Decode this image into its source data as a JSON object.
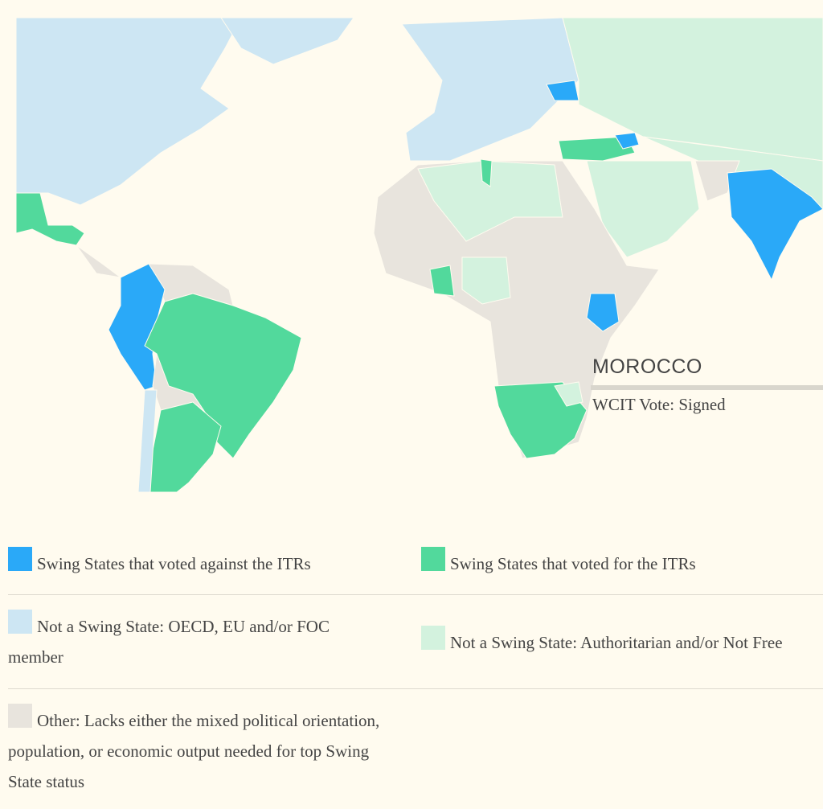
{
  "tooltip": {
    "title": "MOROCCO",
    "text": "WCIT Vote: Signed"
  },
  "legend": {
    "items": [
      {
        "label": "Swing States that voted against the ITRs",
        "color": "#2aa9f8"
      },
      {
        "label": "Swing States that voted for the ITRs",
        "color": "#52d99c"
      },
      {
        "label": "Not a Swing State: OECD, EU and/or FOC member",
        "color": "#cde6f3"
      },
      {
        "label": "Not a Swing State: Authoritarian and/or Not Free",
        "color": "#d3f2de"
      },
      {
        "label": "Other: Lacks either the mixed political orientation, population, or economic output needed for top Swing State status",
        "color": "#e8e4dd"
      }
    ]
  }
}
